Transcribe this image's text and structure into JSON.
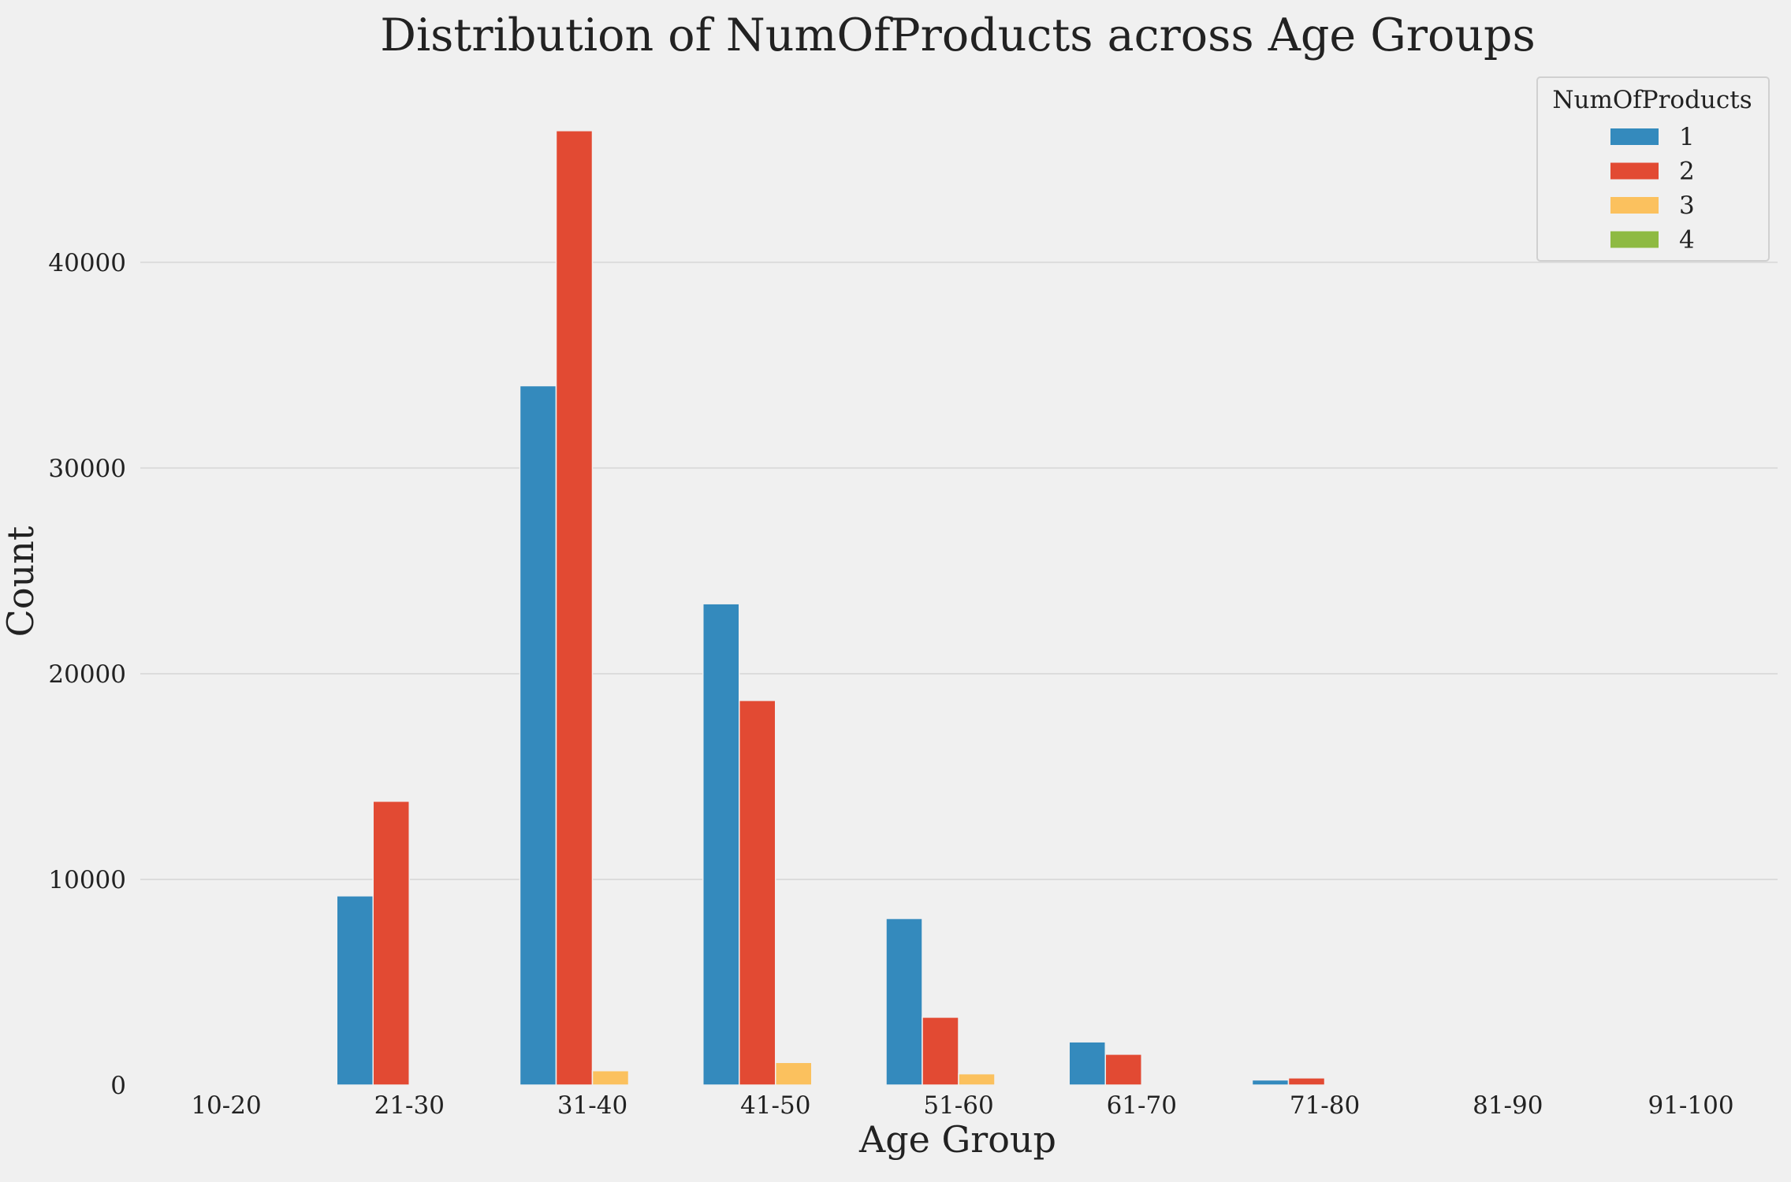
{
  "chart_data": {
    "type": "bar",
    "title": "Distribution of NumOfProducts across Age Groups",
    "xlabel": "Age Group",
    "ylabel": "Count",
    "ylim": [
      0,
      48500
    ],
    "yticks": [
      0,
      10000,
      20000,
      30000,
      40000
    ],
    "grid": "horizontal",
    "legend": {
      "title": "NumOfProducts",
      "placement": "top-right"
    },
    "categories": [
      "10-20",
      "21-30",
      "31-40",
      "41-50",
      "51-60",
      "61-70",
      "71-80",
      "81-90",
      "91-100"
    ],
    "series": [
      {
        "name": "1",
        "color": "#348abd",
        "values": [
          40,
          9200,
          34000,
          23400,
          8100,
          2100,
          250,
          0,
          0
        ]
      },
      {
        "name": "2",
        "color": "#e24a33",
        "values": [
          0,
          13800,
          46400,
          18700,
          3300,
          1500,
          350,
          0,
          0
        ]
      },
      {
        "name": "3",
        "color": "#fbc15e",
        "values": [
          0,
          50,
          700,
          1100,
          550,
          0,
          0,
          0,
          0
        ]
      },
      {
        "name": "4",
        "color": "#8eba42",
        "values": [
          0,
          0,
          0,
          0,
          0,
          0,
          0,
          0,
          0
        ]
      }
    ]
  }
}
